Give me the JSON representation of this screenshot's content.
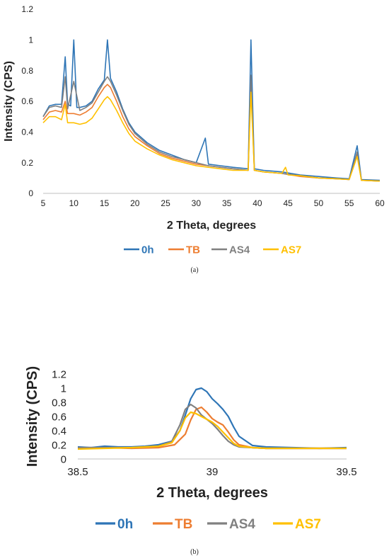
{
  "chart_data": [
    {
      "type": "line",
      "panel_label": "(a)",
      "xlabel": "2 Theta, degrees",
      "ylabel": "Intensity (CPS)",
      "xlim": [
        5,
        60
      ],
      "ylim": [
        0,
        1.2
      ],
      "x_ticks": [
        "5",
        "10",
        "15",
        "20",
        "25",
        "30",
        "35",
        "40",
        "45",
        "50",
        "55",
        "60"
      ],
      "y_ticks": [
        "0",
        "0.2",
        "0.4",
        "0.6",
        "0.8",
        "1",
        "1.2"
      ],
      "legend_position": "bottom",
      "grid": false,
      "series": [
        {
          "name": "0h",
          "color": "#2e75b6",
          "x": [
            5,
            6,
            7,
            8,
            8.6,
            9,
            9.5,
            10,
            10.5,
            11,
            12,
            13,
            14,
            15,
            15.5,
            16,
            17,
            18,
            19,
            20,
            22,
            24,
            26,
            28,
            30,
            31.5,
            32,
            34,
            36,
            38.5,
            38.95,
            39.5,
            41,
            44,
            47,
            50,
            53,
            55,
            56.3,
            57,
            60
          ],
          "y": [
            0.5,
            0.57,
            0.58,
            0.58,
            0.89,
            0.58,
            0.57,
            1.0,
            0.56,
            0.56,
            0.57,
            0.6,
            0.68,
            0.74,
            1.0,
            0.75,
            0.66,
            0.55,
            0.46,
            0.4,
            0.33,
            0.28,
            0.25,
            0.22,
            0.2,
            0.36,
            0.19,
            0.18,
            0.17,
            0.16,
            1.0,
            0.16,
            0.15,
            0.14,
            0.12,
            0.11,
            0.1,
            0.095,
            0.31,
            0.09,
            0.085
          ]
        },
        {
          "name": "TB",
          "color": "#ed7d31",
          "x": [
            5,
            6,
            7,
            8,
            8.6,
            9,
            10,
            11,
            12,
            13,
            14,
            15,
            15.5,
            16,
            17,
            18,
            19,
            20,
            22,
            24,
            26,
            28,
            30,
            32,
            34,
            36,
            38.5,
            38.95,
            39.5,
            41,
            44,
            47,
            50,
            53,
            55,
            56.3,
            57,
            60
          ],
          "y": [
            0.48,
            0.53,
            0.54,
            0.53,
            0.6,
            0.52,
            0.52,
            0.51,
            0.53,
            0.56,
            0.63,
            0.69,
            0.71,
            0.69,
            0.6,
            0.5,
            0.42,
            0.37,
            0.31,
            0.26,
            0.23,
            0.21,
            0.19,
            0.18,
            0.17,
            0.16,
            0.15,
            0.73,
            0.15,
            0.14,
            0.13,
            0.11,
            0.1,
            0.095,
            0.09,
            0.25,
            0.085,
            0.08
          ]
        },
        {
          "name": "AS4",
          "color": "#808080",
          "x": [
            5,
            6,
            7,
            8,
            8.6,
            9,
            10,
            11,
            12,
            13,
            14,
            15,
            15.5,
            16,
            17,
            18,
            19,
            20,
            22,
            24,
            26,
            28,
            30,
            32,
            34,
            36,
            38.5,
            38.95,
            39.5,
            41,
            44,
            47,
            50,
            53,
            55,
            56.3,
            57,
            60
          ],
          "y": [
            0.5,
            0.56,
            0.57,
            0.56,
            0.76,
            0.55,
            0.73,
            0.54,
            0.56,
            0.59,
            0.66,
            0.73,
            0.76,
            0.73,
            0.64,
            0.54,
            0.45,
            0.39,
            0.32,
            0.27,
            0.24,
            0.22,
            0.2,
            0.18,
            0.17,
            0.16,
            0.15,
            0.77,
            0.15,
            0.14,
            0.13,
            0.115,
            0.1,
            0.095,
            0.09,
            0.27,
            0.085,
            0.08
          ]
        },
        {
          "name": "AS7",
          "color": "#ffc000",
          "x": [
            5,
            6,
            7,
            8,
            8.6,
            9,
            10,
            11,
            12,
            13,
            14,
            15,
            15.5,
            16,
            17,
            18,
            19,
            20,
            22,
            24,
            26,
            28,
            30,
            32,
            34,
            36,
            38.5,
            38.95,
            39.5,
            41,
            44,
            44.6,
            45,
            47,
            50,
            53,
            55,
            56.3,
            57,
            60
          ],
          "y": [
            0.46,
            0.5,
            0.5,
            0.48,
            0.58,
            0.46,
            0.46,
            0.45,
            0.46,
            0.49,
            0.55,
            0.61,
            0.63,
            0.61,
            0.54,
            0.46,
            0.39,
            0.34,
            0.29,
            0.25,
            0.22,
            0.2,
            0.18,
            0.17,
            0.16,
            0.15,
            0.15,
            0.66,
            0.15,
            0.14,
            0.13,
            0.17,
            0.12,
            0.115,
            0.1,
            0.095,
            0.09,
            0.24,
            0.085,
            0.08
          ]
        }
      ]
    },
    {
      "type": "line",
      "panel_label": "(b)",
      "xlabel": "2 Theta, degrees",
      "ylabel": "Intensity (CPS)",
      "xlim": [
        38.5,
        39.5
      ],
      "ylim": [
        0,
        1.2
      ],
      "x_ticks": [
        "38.5",
        "39",
        "39.5"
      ],
      "y_ticks": [
        "0",
        "0.2",
        "0.4",
        "0.6",
        "0.8",
        "1",
        "1.2"
      ],
      "legend_position": "bottom",
      "grid": false,
      "series": [
        {
          "name": "0h",
          "color": "#2e75b6",
          "x": [
            38.5,
            38.55,
            38.6,
            38.65,
            38.7,
            38.75,
            38.8,
            38.85,
            38.88,
            38.9,
            38.92,
            38.94,
            38.96,
            38.98,
            39.0,
            39.02,
            39.04,
            39.06,
            39.08,
            39.1,
            39.15,
            39.2,
            39.3,
            39.4,
            39.5
          ],
          "y": [
            0.17,
            0.16,
            0.18,
            0.17,
            0.17,
            0.18,
            0.2,
            0.25,
            0.4,
            0.62,
            0.85,
            0.98,
            1.0,
            0.95,
            0.85,
            0.78,
            0.7,
            0.6,
            0.45,
            0.32,
            0.19,
            0.17,
            0.16,
            0.15,
            0.16
          ]
        },
        {
          "name": "TB",
          "color": "#ed7d31",
          "x": [
            38.5,
            38.6,
            38.7,
            38.8,
            38.86,
            38.9,
            38.92,
            38.94,
            38.96,
            38.98,
            39.0,
            39.02,
            39.04,
            39.06,
            39.08,
            39.1,
            39.15,
            39.2,
            39.3,
            39.4,
            39.5
          ],
          "y": [
            0.15,
            0.16,
            0.15,
            0.16,
            0.2,
            0.35,
            0.55,
            0.7,
            0.73,
            0.66,
            0.57,
            0.52,
            0.48,
            0.38,
            0.27,
            0.2,
            0.16,
            0.15,
            0.15,
            0.15,
            0.15
          ]
        },
        {
          "name": "AS4",
          "color": "#808080",
          "x": [
            38.5,
            38.6,
            38.7,
            38.8,
            38.85,
            38.88,
            38.9,
            38.92,
            38.94,
            38.96,
            38.98,
            39.0,
            39.02,
            39.04,
            39.06,
            39.08,
            39.1,
            39.15,
            39.2,
            39.3,
            39.4,
            39.5
          ],
          "y": [
            0.16,
            0.16,
            0.16,
            0.18,
            0.25,
            0.48,
            0.7,
            0.77,
            0.72,
            0.62,
            0.56,
            0.5,
            0.42,
            0.33,
            0.25,
            0.2,
            0.17,
            0.16,
            0.15,
            0.15,
            0.15,
            0.15
          ]
        },
        {
          "name": "AS7",
          "color": "#ffc000",
          "x": [
            38.5,
            38.6,
            38.7,
            38.8,
            38.85,
            38.88,
            38.9,
            38.92,
            38.94,
            38.96,
            38.98,
            39.0,
            39.02,
            39.04,
            39.06,
            39.08,
            39.1,
            39.15,
            39.2,
            39.3,
            39.4,
            39.5
          ],
          "y": [
            0.14,
            0.15,
            0.16,
            0.18,
            0.23,
            0.4,
            0.58,
            0.66,
            0.64,
            0.6,
            0.56,
            0.52,
            0.46,
            0.38,
            0.3,
            0.22,
            0.18,
            0.16,
            0.15,
            0.15,
            0.15,
            0.15
          ]
        }
      ]
    }
  ]
}
